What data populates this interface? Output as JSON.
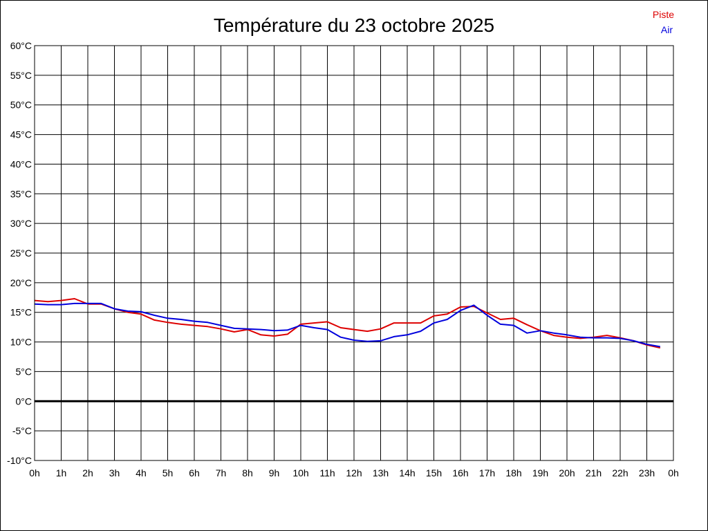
{
  "chart_data": {
    "type": "line",
    "title": "Température du 23 octobre 2025",
    "xlabel": "",
    "ylabel": "",
    "ylim": [
      -10,
      60
    ],
    "y_ticks": [
      "60°C",
      "55°C",
      "50°C",
      "45°C",
      "40°C",
      "35°C",
      "30°C",
      "25°C",
      "20°C",
      "15°C",
      "10°C",
      "5°C",
      "0°C",
      "-5°C",
      "-10°C"
    ],
    "x_ticks": [
      "0h",
      "1h",
      "2h",
      "3h",
      "4h",
      "5h",
      "6h",
      "7h",
      "8h",
      "9h",
      "10h",
      "11h",
      "12h",
      "13h",
      "14h",
      "15h",
      "16h",
      "17h",
      "18h",
      "19h",
      "20h",
      "21h",
      "22h",
      "23h",
      "0h"
    ],
    "grid": true,
    "legend_position": "top-right",
    "series": [
      {
        "name": "Piste",
        "color": "#dd0000",
        "x": [
          0,
          0.5,
          1,
          1.5,
          2,
          2.5,
          3,
          3.5,
          4,
          4.5,
          5,
          5.5,
          6,
          6.5,
          7,
          7.5,
          8,
          8.5,
          9,
          9.5,
          10,
          10.5,
          11,
          11.5,
          12,
          12.5,
          13,
          13.5,
          14,
          14.5,
          15,
          15.5,
          16,
          16.5,
          17,
          17.5,
          18,
          18.5,
          19,
          19.5,
          20,
          20.5,
          21,
          21.5,
          22,
          22.5,
          23,
          23.5
        ],
        "values": [
          17.0,
          16.8,
          17.0,
          17.3,
          16.4,
          16.4,
          15.6,
          15.0,
          14.7,
          13.7,
          13.3,
          13.0,
          12.8,
          12.6,
          12.2,
          11.7,
          12.1,
          11.2,
          11.0,
          11.3,
          13.0,
          13.2,
          13.4,
          12.4,
          12.1,
          11.8,
          12.2,
          13.2,
          13.2,
          13.2,
          14.4,
          14.7,
          15.9,
          16.0,
          14.9,
          13.8,
          14.0,
          12.9,
          11.9,
          11.1,
          10.8,
          10.6,
          10.8,
          11.1,
          10.7,
          10.2,
          9.5,
          9.0
        ]
      },
      {
        "name": "Air",
        "color": "#0000dd",
        "x": [
          0,
          0.5,
          1,
          1.5,
          2,
          2.5,
          3,
          3.5,
          4,
          4.5,
          5,
          5.5,
          6,
          6.5,
          7,
          7.5,
          8,
          8.5,
          9,
          9.5,
          10,
          10.5,
          11,
          11.5,
          12,
          12.5,
          13,
          13.5,
          14,
          14.5,
          15,
          15.5,
          16,
          16.5,
          17,
          17.5,
          18,
          18.5,
          19,
          19.5,
          20,
          20.5,
          21,
          21.5,
          22,
          22.5,
          23,
          23.5
        ],
        "values": [
          16.4,
          16.3,
          16.3,
          16.5,
          16.5,
          16.5,
          15.6,
          15.2,
          15.1,
          14.5,
          14.0,
          13.8,
          13.5,
          13.3,
          12.8,
          12.3,
          12.2,
          12.1,
          11.9,
          12.0,
          12.8,
          12.4,
          12.1,
          10.8,
          10.3,
          10.1,
          10.2,
          10.9,
          11.2,
          11.8,
          13.2,
          13.8,
          15.3,
          16.2,
          14.5,
          13.0,
          12.8,
          11.5,
          11.9,
          11.5,
          11.2,
          10.8,
          10.7,
          10.7,
          10.6,
          10.2,
          9.6,
          9.2
        ]
      }
    ]
  }
}
